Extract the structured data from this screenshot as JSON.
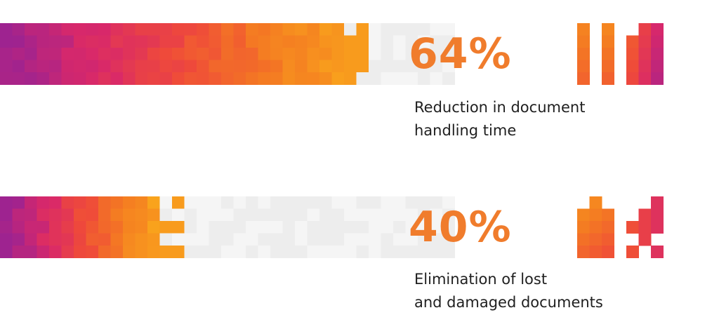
{
  "chart_data": {
    "type": "bar",
    "title": "",
    "xlabel": "",
    "ylabel": "",
    "ylim": [
      0,
      100
    ],
    "categories": [
      "Reduction in document handling time",
      "Elimination of lost and damaged documents"
    ],
    "values": [
      64,
      40
    ],
    "stats": [
      {
        "value_label": "64%",
        "value": 64,
        "desc_line1": "Reduction in document",
        "desc_line2": "handling time"
      },
      {
        "value_label": "40%",
        "value": 40,
        "desc_line1": "Elimination of lost",
        "desc_line2": "and damaged documents"
      }
    ]
  },
  "colors": {
    "accent": "#f07c2c",
    "gradient": [
      "#9e2390",
      "#d8286a",
      "#ef4a3a",
      "#f47a22",
      "#f9a31c"
    ],
    "track": "#ededed",
    "track_alt": "#f5f5f5",
    "text": "#1f1f1f"
  }
}
